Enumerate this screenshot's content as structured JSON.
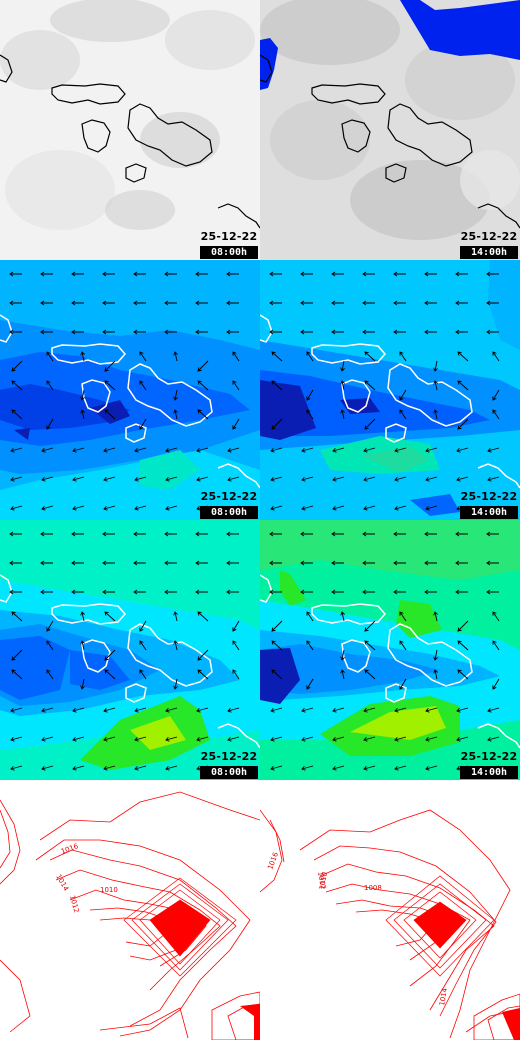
{
  "panels": [
    {
      "row": "clouds",
      "date": "25-12-22",
      "time": "08:00h"
    },
    {
      "row": "clouds",
      "date": "25-12-22",
      "time": "14:00h"
    },
    {
      "row": "wind",
      "date": "25-12-22",
      "time": "08:00h"
    },
    {
      "row": "wind",
      "date": "25-12-22",
      "time": "14:00h"
    },
    {
      "row": "gusts",
      "date": "25-12-22",
      "time": "08:00h"
    },
    {
      "row": "gusts",
      "date": "25-12-22",
      "time": "14:00h"
    },
    {
      "row": "pressure",
      "date": "",
      "time": ""
    },
    {
      "row": "pressure",
      "date": "",
      "time": ""
    }
  ],
  "pressure_labels_left": [
    "1016",
    "1014",
    "1012",
    "1010"
  ],
  "pressure_labels_right": [
    "1016",
    "1012",
    "1010",
    "1008",
    "1014"
  ],
  "colors": {
    "cloud_bg": "#f0f0f0",
    "cloud_shade": "#c8c8c8",
    "precip_blue": "#0022ee",
    "wind_light_blue": "#00b4ff",
    "wind_blue": "#0080ff",
    "wind_dark": "#0a1eb4",
    "wind_cyan": "#00e6ff",
    "wind_teal": "#00f0b4",
    "wind_green": "#28e628",
    "wind_yellowgreen": "#a0f000",
    "isobar_red": "#ff0000"
  }
}
